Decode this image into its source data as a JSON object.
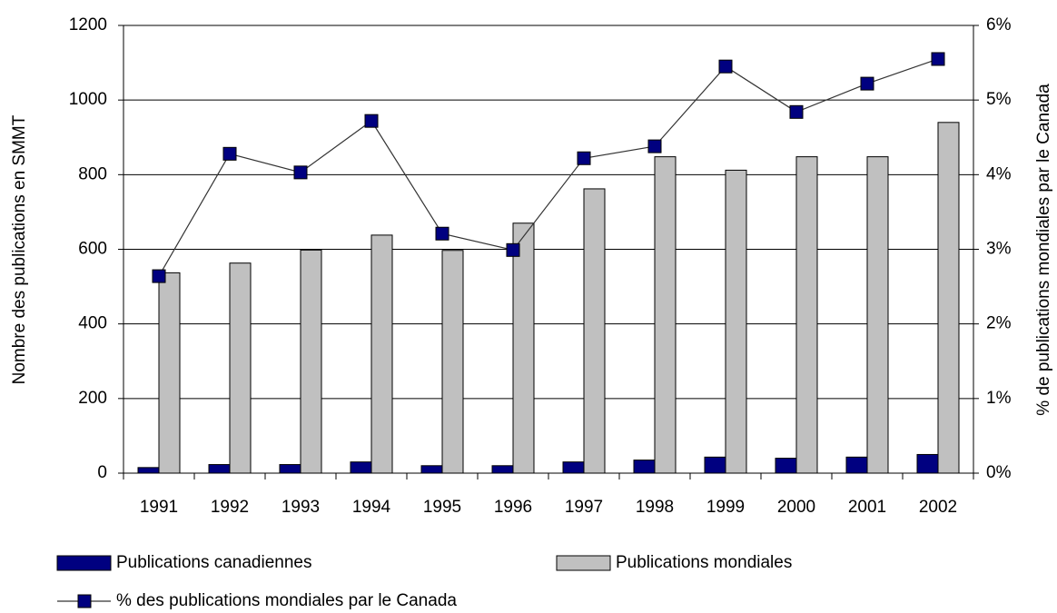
{
  "chart_data": {
    "type": "bar",
    "categories": [
      "1991",
      "1992",
      "1993",
      "1994",
      "1995",
      "1996",
      "1997",
      "1998",
      "1999",
      "2000",
      "2001",
      "2002"
    ],
    "ylabel": "Nombre des publications en SMMT",
    "y2label": "% de publications mondiales par le Canada",
    "ylim": [
      0,
      1200
    ],
    "yticks": [
      0,
      200,
      400,
      600,
      800,
      1000,
      1200
    ],
    "y2lim": [
      0,
      6
    ],
    "y2ticks": [
      {
        "value": 0,
        "label": "0%"
      },
      {
        "value": 1,
        "label": "1%"
      },
      {
        "value": 2,
        "label": "2%"
      },
      {
        "value": 3,
        "label": "3%"
      },
      {
        "value": 4,
        "label": "4%"
      },
      {
        "value": 5,
        "label": "5%"
      },
      {
        "value": 6,
        "label": "6%"
      }
    ],
    "grid": true,
    "series": [
      {
        "name": "Publications canadiennes",
        "type": "bar",
        "color": "#000080",
        "values": [
          15,
          23,
          23,
          30,
          20,
          20,
          30,
          35,
          43,
          40,
          43,
          50
        ]
      },
      {
        "name": "Publications mondiales",
        "type": "bar",
        "color": "#c0c0c0",
        "values": [
          537,
          563,
          598,
          638,
          597,
          670,
          762,
          848,
          812,
          848,
          848,
          940
        ]
      },
      {
        "name": "% des publications mondiales par le Canada",
        "type": "line",
        "axis": "y2",
        "color": "#000080",
        "values": [
          2.64,
          4.28,
          4.03,
          4.72,
          3.21,
          2.99,
          4.22,
          4.38,
          5.45,
          4.84,
          5.22,
          5.55
        ]
      }
    ]
  }
}
